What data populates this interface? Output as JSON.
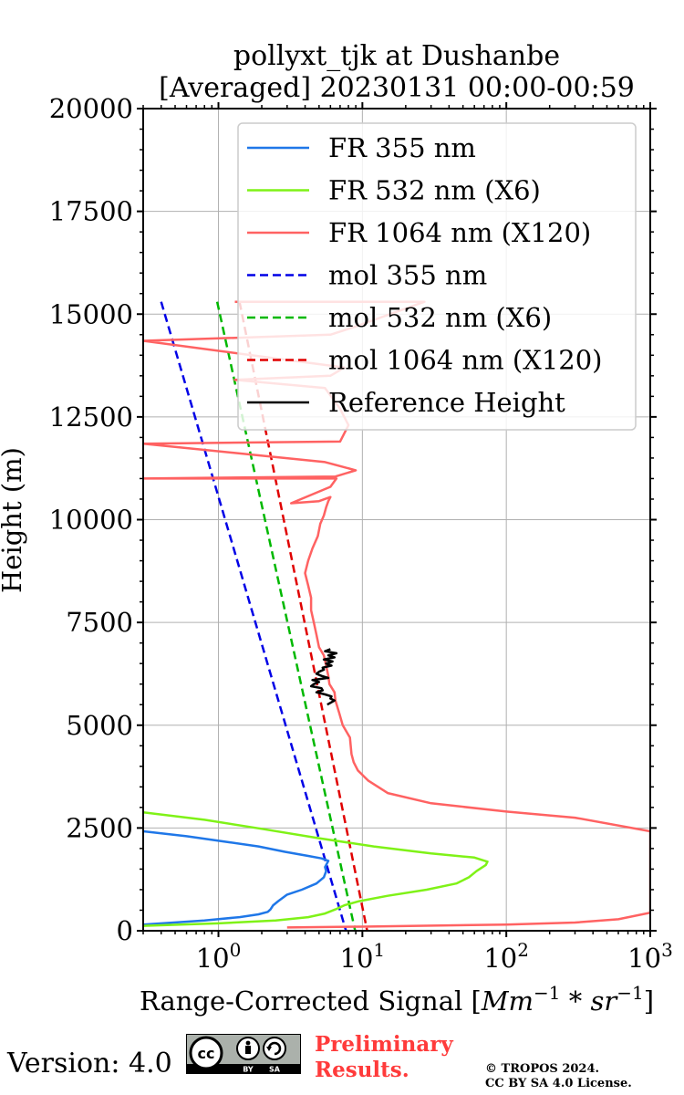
{
  "chart_data": {
    "type": "line",
    "title_line1": "pollyxt_tjk at Dushanbe",
    "title_line2": "[Averaged] 20230131 00:00-00:59",
    "xlabel": "Range-Corrected Signal [Mm⁻¹ * sr⁻¹]",
    "ylabel": "Height (m)",
    "xscale": "log",
    "xlim": [
      0.3,
      1000
    ],
    "ylim": [
      0,
      20000
    ],
    "grid": true,
    "legend_position": "top-right",
    "y_ticks": [
      0,
      2500,
      5000,
      7500,
      10000,
      12500,
      15000,
      17500,
      20000
    ],
    "y_tick_labels": [
      "0",
      "2500",
      "5000",
      "7500",
      "10000",
      "12500",
      "15000",
      "17500",
      "20000"
    ],
    "x_ticks": [
      1,
      10,
      100,
      1000
    ],
    "x_tick_labels": [
      "10^0",
      "10^1",
      "10^2",
      "10^3"
    ],
    "series": [
      {
        "name": "FR 355 nm",
        "color": "#1f77e8",
        "style": "solid",
        "x": [
          0.3,
          0.8,
          1.4,
          1.9,
          2.2,
          2.3,
          2.4,
          2.6,
          3.0,
          3.8,
          4.8,
          5.4,
          5.6,
          5.5,
          5.8,
          5.2,
          4.2,
          2.9,
          1.9,
          1.2,
          0.6,
          0.3
        ],
        "y": [
          150,
          250,
          330,
          400,
          460,
          520,
          620,
          720,
          880,
          1000,
          1150,
          1300,
          1450,
          1550,
          1700,
          1760,
          1820,
          1920,
          2050,
          2150,
          2300,
          2420
        ]
      },
      {
        "name": "FR 532 nm (X6)",
        "color": "#7ff217",
        "style": "solid",
        "x": [
          0.3,
          1.0,
          2.5,
          4.2,
          5.5,
          6.5,
          7.5,
          9.5,
          15,
          28,
          45,
          55,
          62,
          72,
          74,
          60,
          30,
          12,
          5,
          2,
          0.8,
          0.3
        ],
        "y": [
          120,
          180,
          250,
          330,
          420,
          520,
          620,
          720,
          850,
          1000,
          1150,
          1300,
          1450,
          1600,
          1680,
          1780,
          1880,
          2050,
          2250,
          2480,
          2700,
          2880
        ]
      },
      {
        "name": "FR 1064 nm (X120)",
        "color": "#ff6262",
        "style": "solid",
        "x": [
          3.0,
          10,
          100,
          300,
          600,
          1000,
          1000,
          300,
          100,
          30,
          15,
          11,
          9.3,
          8.7,
          8.4,
          8.2,
          7.3,
          6.9,
          6.5,
          6.4,
          5.9,
          5.8,
          5.6,
          5.4,
          5.0,
          4.8,
          4.6,
          4.4,
          4.4,
          4.2,
          4.0,
          4.2,
          4.5,
          4.9,
          5.1,
          5.4,
          5.6,
          5.8,
          6.0,
          5.0,
          3.2,
          6.0,
          6.6,
          4.0,
          0.3,
          6.5,
          9.0,
          5.5,
          0.3,
          7.0,
          8.0,
          7.0,
          5.5,
          1.3,
          6.0,
          7.5,
          0.3,
          6.0,
          9.0,
          27,
          1.3
        ],
        "y": [
          80,
          100,
          150,
          200,
          280,
          440,
          2420,
          2750,
          2900,
          3100,
          3350,
          3650,
          3900,
          4100,
          4300,
          4700,
          5000,
          5300,
          5600,
          5800,
          6000,
          6200,
          6450,
          6700,
          6900,
          7200,
          7500,
          7800,
          8100,
          8400,
          8700,
          9000,
          9300,
          9600,
          9900,
          10100,
          10300,
          10450,
          10550,
          10450,
          10400,
          10800,
          11000,
          11000,
          11000,
          11050,
          11200,
          11400,
          11850,
          11900,
          12300,
          12700,
          13200,
          13400,
          13500,
          13700,
          14350,
          14500,
          14700,
          15300,
          15300
        ]
      },
      {
        "name": "mol 355 nm",
        "color": "#0000e6",
        "style": "dashed",
        "x": [
          0.4,
          7.7
        ],
        "y": [
          15300,
          0
        ]
      },
      {
        "name": "mol 532 nm (X6)",
        "color": "#00b800",
        "style": "dashed",
        "x": [
          0.98,
          8.9
        ],
        "y": [
          15300,
          0
        ]
      },
      {
        "name": "mol 1064 nm (X120)",
        "color": "#e00000",
        "style": "dashed",
        "x": [
          1.4,
          10.8
        ],
        "y": [
          15300,
          0
        ]
      },
      {
        "name": "Reference Height",
        "color": "#000000",
        "style": "solid",
        "x": [
          5.7,
          6.4,
          6.0,
          6.1,
          5.5,
          4.8,
          5.3,
          5.2,
          4.4,
          4.6,
          5.0,
          4.5,
          5.8,
          5.2,
          4.8,
          5.0,
          5.4,
          5.3,
          6.1,
          5.6,
          6.2,
          5.4,
          6.4,
          5.8,
          6.6,
          5.5,
          6.0
        ],
        "y": [
          5500,
          5600,
          5650,
          5700,
          5750,
          5800,
          5850,
          5900,
          5950,
          6000,
          6050,
          6100,
          6150,
          6200,
          6250,
          6300,
          6350,
          6400,
          6450,
          6500,
          6550,
          6600,
          6650,
          6700,
          6750,
          6800,
          6850
        ]
      }
    ]
  },
  "footer": {
    "version_label": "Version: 4.0",
    "license_badge_text": "cc by sa",
    "preliminary_line1": "Preliminary",
    "preliminary_line2": "Results.",
    "copyright_line1": "© TROPOS 2024.",
    "copyright_line2": "CC BY SA 4.0 License.",
    "prelim_color": "#ff3b3b"
  }
}
